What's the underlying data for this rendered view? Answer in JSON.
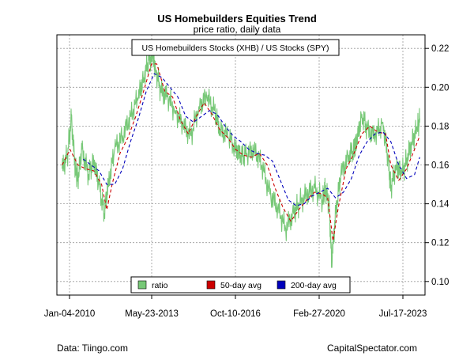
{
  "header": {
    "title": "US Homebuilders Equities Trend",
    "subtitle": "price ratio, daily data"
  },
  "footer": {
    "source": "Data: Tiingo.com",
    "credit": "CapitalSpectator.com"
  },
  "colors": {
    "ratio": "#77c877",
    "ma50": "#cc0000",
    "ma200": "#0000bb",
    "grid": "#9a9a9a",
    "axis": "#000000"
  },
  "chart_data": {
    "type": "line",
    "title": "US Homebuilders Equities Trend",
    "subtitle": "price ratio, daily data",
    "annotation": "US Homebuilders Stocks (XHB) / US Stocks (SPY)",
    "x_ticks": [
      "Jan-04-2010",
      "May-23-2013",
      "Oct-10-2016",
      "Feb-27-2020",
      "Jul-17-2023"
    ],
    "y_ticks": [
      0.1,
      0.12,
      0.14,
      0.16,
      0.18,
      0.2,
      0.22
    ],
    "y_tick_labels": [
      "0.10",
      "0.12",
      "0.14",
      "0.16",
      "0.18",
      "0.20",
      "0.22"
    ],
    "xlim": [
      2009.8,
      2023.8
    ],
    "ylim": [
      0.093,
      0.227
    ],
    "x_axis_position": "right",
    "grid": true,
    "legend_position": "bottom",
    "series": [
      {
        "name": "ratio",
        "x": [
          2010.0,
          2010.2,
          2010.35,
          2010.5,
          2010.6,
          2010.75,
          2011.0,
          2011.2,
          2011.4,
          2011.6,
          2011.75,
          2012.0,
          2012.3,
          2012.6,
          2012.9,
          2013.1,
          2013.3,
          2013.45,
          2013.55,
          2013.75,
          2014.0,
          2014.3,
          2014.6,
          2014.9,
          2015.2,
          2015.5,
          2015.8,
          2016.0,
          2016.3,
          2016.6,
          2016.8,
          2017.0,
          2017.3,
          2017.6,
          2017.9,
          2018.2,
          2018.5,
          2018.8,
          2019.0,
          2019.3,
          2019.6,
          2019.9,
          2020.0,
          2020.15,
          2020.25,
          2020.4,
          2020.6,
          2020.9,
          2021.1,
          2021.2,
          2021.4,
          2021.6,
          2021.9,
          2022.2,
          2022.4,
          2022.5,
          2022.7,
          2022.9,
          2023.1,
          2023.3,
          2023.5,
          2023.6
        ],
        "values": [
          0.158,
          0.165,
          0.184,
          0.158,
          0.153,
          0.168,
          0.155,
          0.162,
          0.15,
          0.135,
          0.15,
          0.168,
          0.175,
          0.185,
          0.195,
          0.205,
          0.214,
          0.216,
          0.21,
          0.198,
          0.195,
          0.188,
          0.18,
          0.175,
          0.19,
          0.195,
          0.188,
          0.178,
          0.175,
          0.168,
          0.165,
          0.165,
          0.168,
          0.16,
          0.145,
          0.138,
          0.127,
          0.135,
          0.14,
          0.145,
          0.148,
          0.142,
          0.148,
          0.14,
          0.11,
          0.135,
          0.155,
          0.165,
          0.168,
          0.172,
          0.186,
          0.178,
          0.175,
          0.182,
          0.162,
          0.148,
          0.16,
          0.155,
          0.162,
          0.172,
          0.178,
          0.184
        ]
      },
      {
        "name": "50-day avg",
        "x": [
          2010.0,
          2010.3,
          2010.6,
          2010.9,
          2011.2,
          2011.5,
          2011.7,
          2011.9,
          2012.2,
          2012.5,
          2012.8,
          2013.1,
          2013.4,
          2013.6,
          2013.9,
          2014.2,
          2014.5,
          2014.8,
          2015.1,
          2015.4,
          2015.7,
          2016.0,
          2016.3,
          2016.6,
          2016.9,
          2017.2,
          2017.5,
          2017.8,
          2018.1,
          2018.4,
          2018.7,
          2019.0,
          2019.3,
          2019.6,
          2019.9,
          2020.1,
          2020.3,
          2020.5,
          2020.8,
          2021.1,
          2021.4,
          2021.7,
          2022.0,
          2022.3,
          2022.5,
          2022.8,
          2023.1,
          2023.4,
          2023.6
        ],
        "values": [
          0.16,
          0.168,
          0.16,
          0.158,
          0.157,
          0.15,
          0.137,
          0.15,
          0.166,
          0.174,
          0.185,
          0.198,
          0.212,
          0.212,
          0.198,
          0.195,
          0.183,
          0.176,
          0.185,
          0.192,
          0.186,
          0.178,
          0.174,
          0.168,
          0.165,
          0.164,
          0.166,
          0.16,
          0.148,
          0.138,
          0.131,
          0.137,
          0.142,
          0.146,
          0.145,
          0.143,
          0.121,
          0.138,
          0.158,
          0.166,
          0.176,
          0.18,
          0.177,
          0.176,
          0.16,
          0.152,
          0.158,
          0.168,
          0.175
        ]
      },
      {
        "name": "200-day avg",
        "x": [
          2010.8,
          2011.1,
          2011.4,
          2011.7,
          2012.0,
          2012.3,
          2012.6,
          2012.9,
          2013.2,
          2013.5,
          2013.8,
          2014.1,
          2014.4,
          2014.7,
          2015.0,
          2015.3,
          2015.6,
          2015.9,
          2016.2,
          2016.5,
          2016.8,
          2017.1,
          2017.4,
          2017.7,
          2018.0,
          2018.3,
          2018.6,
          2018.9,
          2019.2,
          2019.5,
          2019.8,
          2020.1,
          2020.4,
          2020.7,
          2021.0,
          2021.3,
          2021.6,
          2021.9,
          2022.2,
          2022.5,
          2022.8,
          2023.1,
          2023.4,
          2023.6
        ],
        "values": [
          0.163,
          0.16,
          0.157,
          0.15,
          0.15,
          0.158,
          0.172,
          0.184,
          0.198,
          0.207,
          0.205,
          0.2,
          0.195,
          0.185,
          0.182,
          0.185,
          0.188,
          0.186,
          0.18,
          0.175,
          0.172,
          0.168,
          0.166,
          0.165,
          0.162,
          0.152,
          0.142,
          0.139,
          0.14,
          0.144,
          0.146,
          0.148,
          0.143,
          0.146,
          0.153,
          0.165,
          0.172,
          0.176,
          0.177,
          0.172,
          0.16,
          0.153,
          0.155,
          0.164
        ]
      }
    ]
  }
}
